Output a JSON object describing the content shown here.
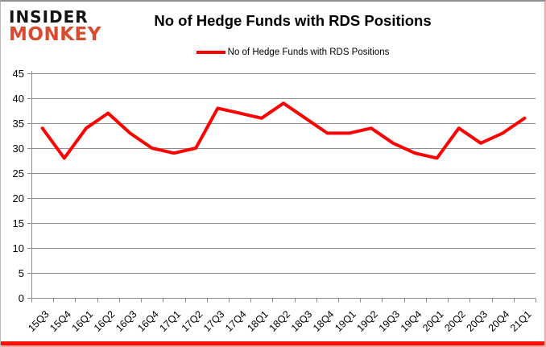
{
  "branding": {
    "logo_line1": "INSIDER",
    "logo_line2": "MONKEY",
    "logo_color_primary": "#161412",
    "logo_color_accent": "#d94b2f"
  },
  "header": {
    "title": "No of Hedge Funds with RDS Positions"
  },
  "legend": {
    "label": "No of Hedge Funds with RDS Positions",
    "line_color": "#ff0000"
  },
  "chart_data": {
    "type": "line",
    "title": "No of Hedge Funds with RDS Positions",
    "categories": [
      "15Q3",
      "15Q4",
      "16Q1",
      "16Q2",
      "16Q3",
      "16Q4",
      "17Q1",
      "17Q2",
      "17Q3",
      "17Q4",
      "18Q1",
      "18Q2",
      "18Q3",
      "18Q4",
      "19Q1",
      "19Q2",
      "19Q3",
      "19Q4",
      "20Q1",
      "20Q2",
      "20Q3",
      "20Q4",
      "21Q1"
    ],
    "series": [
      {
        "name": "No of Hedge Funds with RDS Positions",
        "color": "#ff0000",
        "values": [
          34,
          28,
          34,
          37,
          33,
          30,
          29,
          30,
          38,
          37,
          36,
          39,
          36,
          33,
          33,
          34,
          31,
          29,
          28,
          34,
          31,
          33,
          36
        ]
      }
    ],
    "xlabel": "",
    "ylabel": "",
    "ylim": [
      0,
      45
    ],
    "yticks": [
      0,
      5,
      10,
      15,
      20,
      25,
      30,
      35,
      40,
      45
    ],
    "grid": "horizontal",
    "gridline_color": "#8e8e8e",
    "legend_position": "top"
  }
}
